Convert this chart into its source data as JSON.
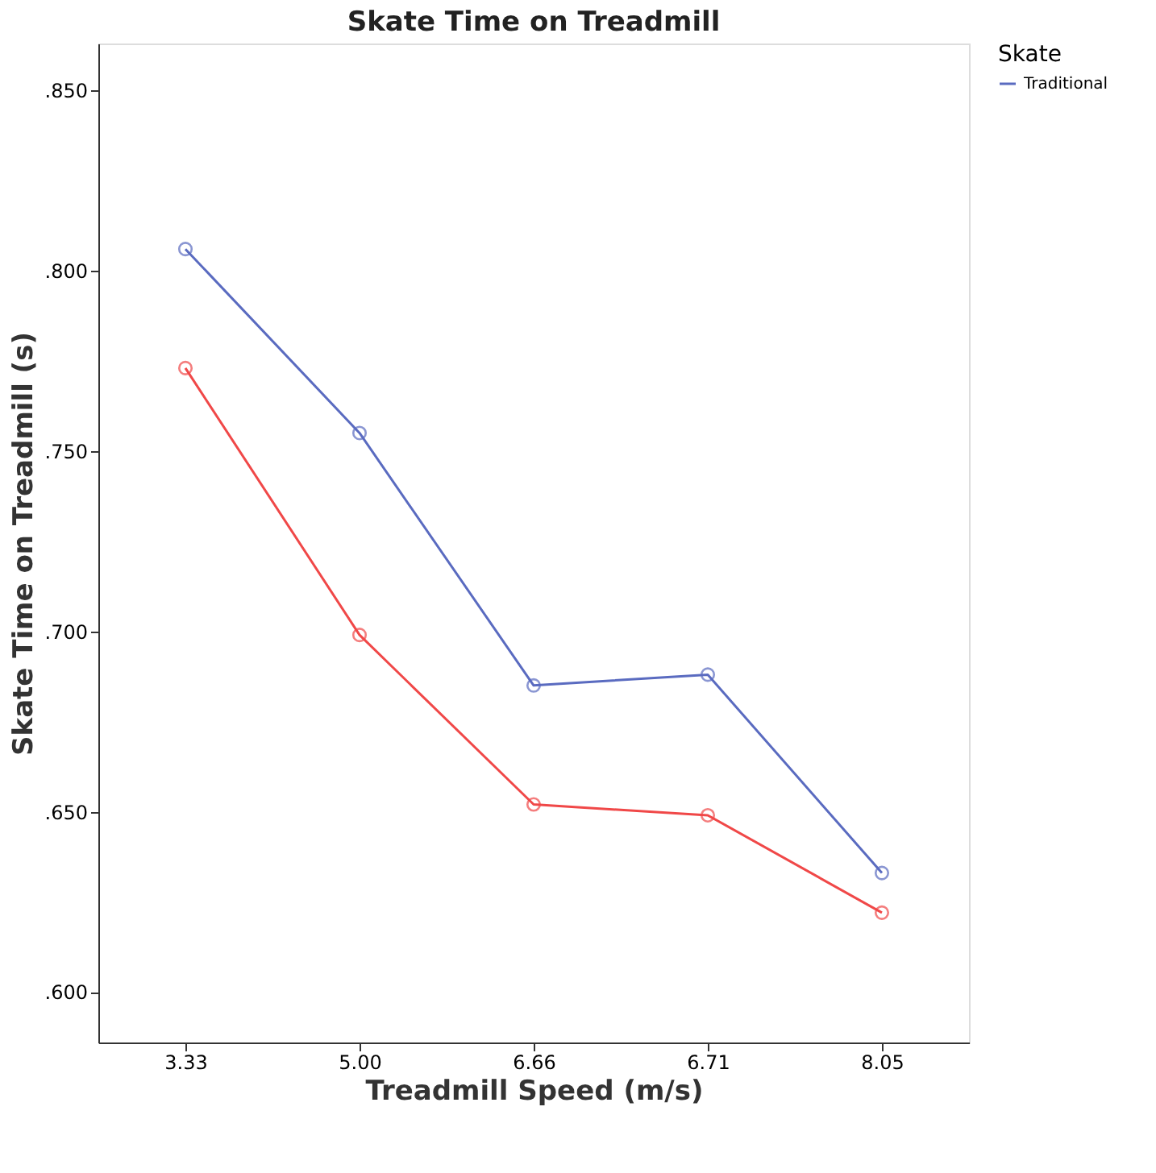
{
  "chart_data": {
    "type": "line",
    "title": "Skate Time on Treadmill",
    "xlabel": "Treadmill Speed (m/s)",
    "ylabel": "Skate Time on Treadmill (s)",
    "legend_title": "Skate",
    "categories": [
      "3.33",
      "5.00",
      "6.66",
      "6.71",
      "8.05"
    ],
    "series": [
      {
        "name": "Traditional",
        "color": "#5a6bc0",
        "values": [
          0.806,
          0.755,
          0.685,
          0.688,
          0.633
        ]
      },
      {
        "color": "#f04848",
        "values": [
          0.773,
          0.699,
          0.652,
          0.649,
          0.622
        ]
      }
    ],
    "ylim": [
      0.586,
      0.863
    ],
    "yticks": [
      {
        "value": 0.6,
        "label": ".600"
      },
      {
        "value": 0.65,
        "label": ".650"
      },
      {
        "value": 0.7,
        "label": ".700"
      },
      {
        "value": 0.75,
        "label": ".750"
      },
      {
        "value": 0.8,
        "label": ".800"
      },
      {
        "value": 0.85,
        "label": ".850"
      }
    ],
    "marker": "circle",
    "line_style": "solid",
    "grid": false,
    "legend": "top right"
  }
}
